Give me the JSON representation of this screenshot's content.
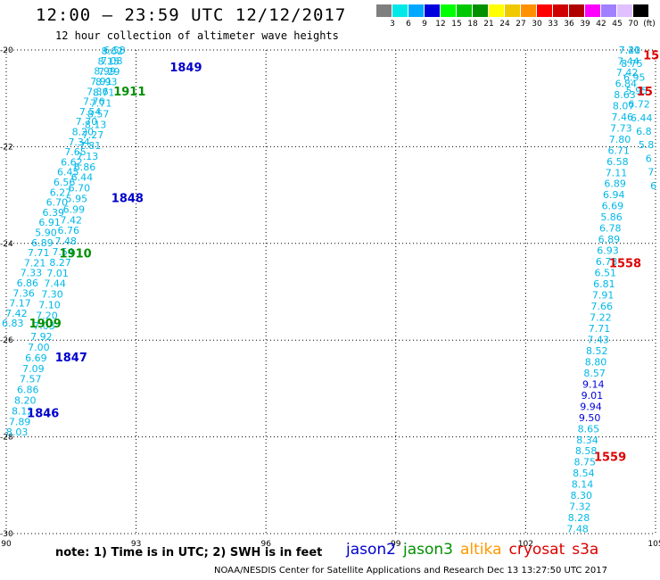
{
  "title": "12:00 — 23:59 UTC 12/12/2017",
  "subtitle": "12 hour collection of altimeter wave heights",
  "note": "note: 1) Time is in UTC; 2) SWH is in feet",
  "credit": "NOAA/NESDIS Center for Satellite Applications and Research   Dec 13 13:27:50 UTC 2017",
  "color_scale": {
    "labels": [
      "3",
      "6",
      "9",
      "12",
      "15",
      "18",
      "21",
      "24",
      "27",
      "30",
      "33",
      "36",
      "39",
      "42",
      "45",
      "70",
      "(ft)"
    ],
    "colors": [
      "#7f7f7f",
      "#00e8e8",
      "#00a8ff",
      "#0000dd",
      "#00ff00",
      "#00c800",
      "#009000",
      "#ffff00",
      "#f0c800",
      "#ff9000",
      "#ff0000",
      "#d00000",
      "#b00000",
      "#ff00ff",
      "#a080ff",
      "#e0c0ff",
      "#000000"
    ]
  },
  "legend": [
    {
      "label": "jason2",
      "color": "#0000cc"
    },
    {
      "label": "jason3",
      "color": "#009000"
    },
    {
      "label": "altika",
      "color": "#ff9900"
    },
    {
      "label": "cryosat",
      "color": "#dd0000"
    },
    {
      "label": "s3a",
      "color": "#dd0000"
    }
  ],
  "chart_data": {
    "type": "scatter",
    "title": "12:00 — 23:59 UTC 12/12/2017",
    "xlim": [
      90,
      105
    ],
    "ylim": [
      -30,
      -20
    ],
    "x_ticks": [
      "90",
      "93",
      "96",
      "99",
      "102",
      "105"
    ],
    "y_ticks": [
      "-20",
      "-22",
      "-24",
      "-26",
      "-28",
      "-30"
    ],
    "grid": "dotted",
    "tracks": [
      {
        "satellite": "jason2",
        "color": "#00b8e8",
        "start": [
          90.25,
          -27.9
        ],
        "end": [
          92.5,
          -20.0
        ],
        "values": [
          "8.03",
          "7.89",
          "8.12",
          "8.20",
          "6.86",
          "7.57",
          "7.09",
          "6.69",
          "7.00",
          "7.92",
          "7.03",
          "7.20",
          "7.10",
          "7.30",
          "7.44",
          "7.01",
          "8.27",
          "7.54",
          "7.48",
          "6.76",
          "7.42",
          "6.99",
          "5.95",
          "6.70",
          "6.44",
          "6.86",
          "7.13",
          "7.81",
          "7.27",
          "8.13",
          "8.57",
          "7.71",
          "8.71",
          "8.93",
          "7.29",
          "7.08",
          "6.58"
        ]
      },
      {
        "satellite": "jason3",
        "color": "#00b8e8",
        "start": [
          90.15,
          -25.65
        ],
        "end": [
          92.45,
          -20.02
        ],
        "values": [
          "6.83",
          "7.42",
          "7.17",
          "7.36",
          "6.86",
          "7.33",
          "7.21",
          "7.71",
          "6.89",
          "5.90",
          "6.91",
          "6.39",
          "6.70",
          "6.27",
          "6.56",
          "6.45",
          "6.62",
          "7.65",
          "7.34",
          "8.20",
          "7.70",
          "7.54",
          "7.76",
          "7.36",
          "7.91",
          "8.99",
          "8.15",
          "8.62"
        ]
      },
      {
        "satellite": "cryosat",
        "color": "#00b8e8",
        "start": [
          103.2,
          -29.9
        ],
        "end": [
          104.4,
          -20.0
        ],
        "values": [
          "7.48",
          "8.28",
          "7.32",
          "8.30",
          "8.14",
          "8.54",
          "8.75",
          "8.58",
          "8.34",
          "8.65",
          "9.50",
          "9.94",
          "9.01",
          "9.14",
          "8.57",
          "8.80",
          "8.52",
          "7.43",
          "7.71",
          "7.22",
          "7.66",
          "7.91",
          "6.81",
          "6.51",
          "6.73",
          "6.93",
          "6.89",
          "6.78",
          "5.86",
          "6.69",
          "6.94",
          "6.89",
          "7.11",
          "6.58",
          "6.71",
          "7.80",
          "7.73",
          "7.46",
          "8.07",
          "8.63",
          "6.84",
          "7.42",
          "7.44",
          "7.20"
        ]
      },
      {
        "satellite": "s3a",
        "color": "#00b8e8",
        "start": [
          104.4,
          -20.0
        ],
        "end": [
          104.95,
          -22.8
        ],
        "values": [
          "7.41",
          "8.75",
          "6.95",
          "5.95",
          "6.72",
          "6.44",
          "6.8",
          "5.8",
          "6",
          "7",
          "6"
        ]
      }
    ],
    "time_labels": [
      {
        "text": "1849",
        "x": 94.15,
        "y": -20.35,
        "color": "#0000cc"
      },
      {
        "text": "1911",
        "x": 92.85,
        "y": -20.85,
        "color": "#009000"
      },
      {
        "text": "1848",
        "x": 92.8,
        "y": -23.05,
        "color": "#0000cc"
      },
      {
        "text": "1910",
        "x": 91.6,
        "y": -24.2,
        "color": "#009000"
      },
      {
        "text": "1909",
        "x": 90.9,
        "y": -25.65,
        "color": "#009000"
      },
      {
        "text": "1847",
        "x": 91.5,
        "y": -26.35,
        "color": "#0000cc"
      },
      {
        "text": "1846",
        "x": 90.85,
        "y": -27.5,
        "color": "#0000cc"
      },
      {
        "text": "1558",
        "x": 104.3,
        "y": -24.4,
        "color": "#dd0000"
      },
      {
        "text": "1559",
        "x": 103.95,
        "y": -28.4,
        "color": "#dd0000"
      },
      {
        "text": "15",
        "x": 104.9,
        "y": -20.1,
        "color": "#dd0000"
      },
      {
        "text": "15",
        "x": 104.75,
        "y": -20.85,
        "color": "#dd0000"
      }
    ]
  }
}
